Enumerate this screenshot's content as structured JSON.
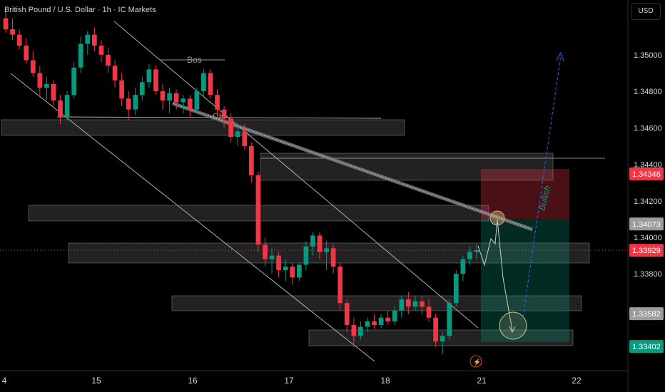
{
  "header": {
    "title": "British Pound / U.S. Dollar · 1h · IC Markets"
  },
  "currency_button": "USD",
  "chart_data": {
    "type": "candlestick",
    "xlabel": "",
    "ylabel": "",
    "x_ticks": [
      "4",
      "15",
      "16",
      "17",
      "18",
      "21",
      "22"
    ],
    "y_ticks": [
      "1.35000",
      "1.34800",
      "1.34600",
      "1.34400",
      "1.34200",
      "1.34000",
      "1.33800"
    ],
    "ylim": [
      1.3327,
      1.353
    ],
    "price_labels": [
      {
        "text": "1.34348",
        "value": 1.34348,
        "color": "#f23645"
      },
      {
        "text": "1.34073",
        "value": 1.34073,
        "color": "#9c9c9c"
      },
      {
        "text": "1.33929",
        "value": 1.33929,
        "color": "#f23645"
      },
      {
        "text": "1.33582",
        "value": 1.33582,
        "color": "#9c9c9c"
      },
      {
        "text": "1.33402",
        "value": 1.33402,
        "color": "#089981"
      }
    ],
    "annotations": {
      "bos": "Bos",
      "choch": "CH",
      "bullish": "Bullish"
    },
    "candles": [
      [
        1.352,
        1.3524,
        1.3512,
        1.3514
      ],
      [
        1.3514,
        1.352,
        1.3508,
        1.3511
      ],
      [
        1.3511,
        1.3514,
        1.3503,
        1.3505
      ],
      [
        1.3505,
        1.3509,
        1.3495,
        1.3497
      ],
      [
        1.3497,
        1.3502,
        1.3488,
        1.349
      ],
      [
        1.349,
        1.3494,
        1.3478,
        1.3482
      ],
      [
        1.3482,
        1.3488,
        1.3475,
        1.3484
      ],
      [
        1.3484,
        1.3486,
        1.3472,
        1.3475
      ],
      [
        1.3475,
        1.3478,
        1.3462,
        1.3466
      ],
      [
        1.3466,
        1.348,
        1.3464,
        1.3478
      ],
      [
        1.3478,
        1.3496,
        1.3476,
        1.3493
      ],
      [
        1.3493,
        1.351,
        1.349,
        1.3506
      ],
      [
        1.3506,
        1.3513,
        1.35,
        1.3511
      ],
      [
        1.3511,
        1.3515,
        1.3502,
        1.3505
      ],
      [
        1.3505,
        1.3508,
        1.3496,
        1.35
      ],
      [
        1.35,
        1.3504,
        1.349,
        1.3494
      ],
      [
        1.3494,
        1.3497,
        1.3482,
        1.3486
      ],
      [
        1.3486,
        1.349,
        1.3472,
        1.3476
      ],
      [
        1.3476,
        1.348,
        1.3464,
        1.347
      ],
      [
        1.347,
        1.3482,
        1.3467,
        1.3478
      ],
      [
        1.3478,
        1.3488,
        1.3475,
        1.3485
      ],
      [
        1.3485,
        1.3495,
        1.3482,
        1.3492
      ],
      [
        1.3492,
        1.3494,
        1.3478,
        1.348
      ],
      [
        1.348,
        1.3484,
        1.347,
        1.3475
      ],
      [
        1.3475,
        1.3482,
        1.3468,
        1.3479
      ],
      [
        1.3479,
        1.3481,
        1.347,
        1.3474
      ],
      [
        1.3474,
        1.3478,
        1.3468,
        1.3476
      ],
      [
        1.3476,
        1.3478,
        1.3466,
        1.347
      ],
      [
        1.347,
        1.3482,
        1.3468,
        1.348
      ],
      [
        1.348,
        1.3492,
        1.3477,
        1.349
      ],
      [
        1.349,
        1.3492,
        1.3476,
        1.3478
      ],
      [
        1.3478,
        1.3481,
        1.3466,
        1.347
      ],
      [
        1.347,
        1.3472,
        1.346,
        1.3465
      ],
      [
        1.3465,
        1.3468,
        1.3452,
        1.3455
      ],
      [
        1.3455,
        1.3463,
        1.345,
        1.3458
      ],
      [
        1.3458,
        1.3462,
        1.3448,
        1.345
      ],
      [
        1.345,
        1.3452,
        1.343,
        1.3434
      ],
      [
        1.3434,
        1.3436,
        1.3392,
        1.3396
      ],
      [
        1.3396,
        1.34,
        1.3384,
        1.3388
      ],
      [
        1.3388,
        1.3394,
        1.338,
        1.339
      ],
      [
        1.339,
        1.3392,
        1.3378,
        1.3382
      ],
      [
        1.3382,
        1.3388,
        1.3376,
        1.3384
      ],
      [
        1.3384,
        1.3386,
        1.3374,
        1.3378
      ],
      [
        1.3378,
        1.3386,
        1.3376,
        1.3385
      ],
      [
        1.3385,
        1.3398,
        1.3382,
        1.3395
      ],
      [
        1.3395,
        1.3403,
        1.339,
        1.3401
      ],
      [
        1.3401,
        1.3403,
        1.3388,
        1.3392
      ],
      [
        1.3392,
        1.3398,
        1.3382,
        1.3394
      ],
      [
        1.3394,
        1.3396,
        1.338,
        1.3384
      ],
      [
        1.3384,
        1.3386,
        1.336,
        1.3364
      ],
      [
        1.3364,
        1.3366,
        1.3348,
        1.3352
      ],
      [
        1.3352,
        1.3356,
        1.334,
        1.3346
      ],
      [
        1.3346,
        1.3354,
        1.3344,
        1.3351
      ],
      [
        1.3351,
        1.3356,
        1.3348,
        1.3354
      ],
      [
        1.3354,
        1.3358,
        1.335,
        1.3352
      ],
      [
        1.3352,
        1.3358,
        1.335,
        1.3356
      ],
      [
        1.3356,
        1.336,
        1.3352,
        1.3354
      ],
      [
        1.3354,
        1.3362,
        1.3352,
        1.336
      ],
      [
        1.336,
        1.3368,
        1.3356,
        1.3366
      ],
      [
        1.3366,
        1.337,
        1.3358,
        1.3362
      ],
      [
        1.3362,
        1.3368,
        1.336,
        1.3365
      ],
      [
        1.3365,
        1.3368,
        1.3358,
        1.3362
      ],
      [
        1.3362,
        1.3366,
        1.3354,
        1.3356
      ],
      [
        1.3356,
        1.3358,
        1.334,
        1.3343
      ],
      [
        1.3343,
        1.3348,
        1.3336,
        1.3346
      ],
      [
        1.3346,
        1.3366,
        1.3344,
        1.3364
      ],
      [
        1.3364,
        1.3382,
        1.3362,
        1.338
      ],
      [
        1.338,
        1.339,
        1.3376,
        1.3388
      ],
      [
        1.3388,
        1.3395,
        1.3385,
        1.3392
      ],
      [
        1.3392,
        1.3396,
        1.3388,
        1.3393
      ]
    ]
  }
}
